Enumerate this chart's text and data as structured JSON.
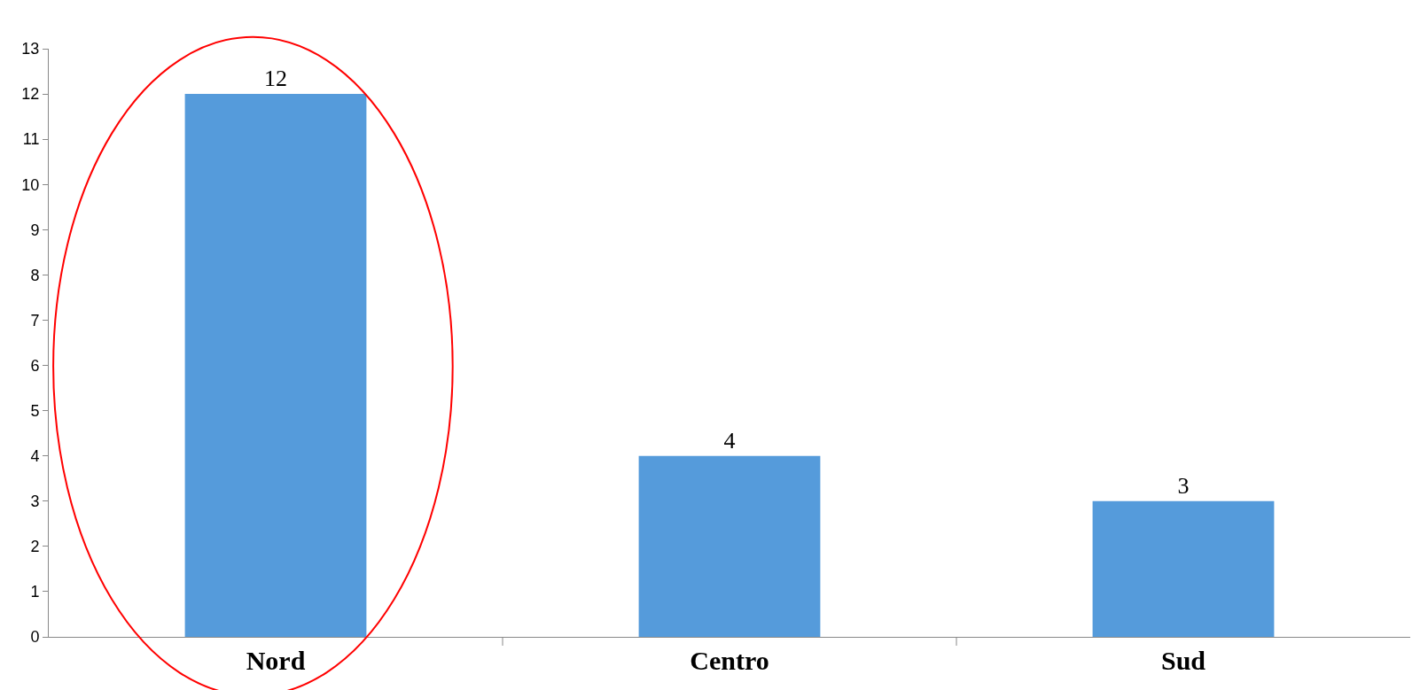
{
  "chart_data": {
    "type": "bar",
    "categories": [
      "Nord",
      "Centro",
      "Sud"
    ],
    "values": [
      12,
      4,
      3
    ],
    "color": "#559bdb",
    "ylim": [
      0,
      13
    ],
    "yticks": [
      0,
      1,
      2,
      3,
      4,
      5,
      6,
      7,
      8,
      9,
      10,
      11,
      12,
      13
    ],
    "legend": false,
    "data_labels": true
  }
}
